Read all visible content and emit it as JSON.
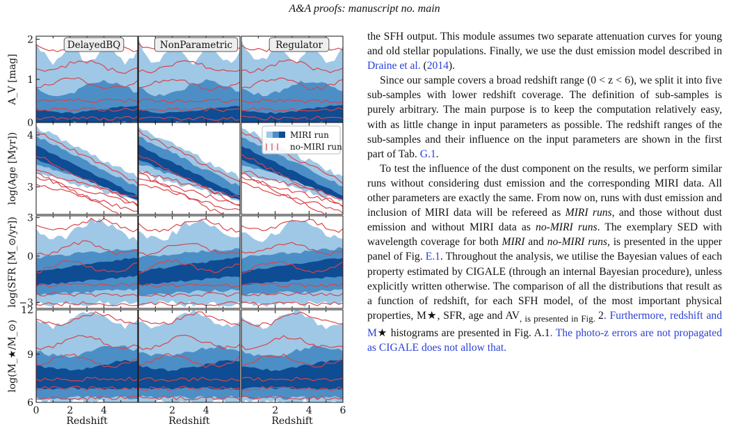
{
  "header": {
    "title": "A&A proofs: manuscript no. main"
  },
  "figure": {
    "models": [
      "DelayedBQ",
      "NonParametric",
      "Regulator"
    ],
    "row_labels": [
      "A_V [mag]",
      "log(Age [Myr])",
      "log(SFR [M_⊙/yr])",
      "log(M_★/M_⊙)"
    ],
    "xlabel": "Redshift",
    "x_ticks": [
      "0",
      "2",
      "4",
      "6"
    ],
    "y_ticks": [
      [
        "0",
        "1",
        "2"
      ],
      [
        "3",
        "4"
      ],
      [
        "−3",
        "0",
        "3"
      ],
      [
        "6",
        "9",
        "12"
      ]
    ],
    "legend": [
      "MIRI run",
      "no-MIRI run"
    ],
    "colors": {
      "light": "#9ec8e6",
      "mid": "#4c8fc6",
      "dark": "#0e4c94",
      "red": "#d9444a"
    }
  },
  "text": {
    "p1": [
      "the SFH output. This module assumes two separate attenuation curves for young and old stellar populations. Finally, we use the dust emission model described in ",
      "Draine et al.",
      " (",
      "2014",
      ")."
    ],
    "p2": [
      "Since our sample covers a broad redshift range (0 < z < 6), we split it into five sub-samples with lower redshift coverage. The definition of sub-samples is purely arbitrary. The main purpose is to keep the computation relatively easy, with as little change in input parameters as possible. The redshift ranges of the sub-samples and their influence on the input parameters are shown in the first part of Tab. ",
      "G.1",
      "."
    ],
    "p3": [
      "To test the influence of the dust component on the results, we perform similar runs without considering dust emission and the corresponding MIRI data. All other parameters are exactly the same. From now on, runs with dust emission and inclusion of MIRI data will be refereed as ",
      "MIRI runs",
      ", and those without dust emission and without MIRI data as ",
      "no-MIRI runs",
      ". The exemplary SED with wavelength coverage for both ",
      "MIRI",
      " and ",
      "no-MIRI runs",
      ", is presented in the upper panel of Fig. ",
      "E.1",
      ". Throughout the analysis, we utilise the Bayesian values of each property estimated by CIGALE (through an internal Bayesian procedure), unless explicitly written otherwise. The comparison of all the distributions that result as a function of redshift, for each SFH model, of the most important physical properties, M",
      "★",
      ", SFR, age and A",
      "V",
      ", is presented in Fig. ",
      "2",
      ". Furthermore, redshift and M",
      "★",
      " histograms are presented in Fig. ",
      "A.1",
      ". The photo-z errors are not propagated as CIGALE does not allow that."
    ]
  }
}
